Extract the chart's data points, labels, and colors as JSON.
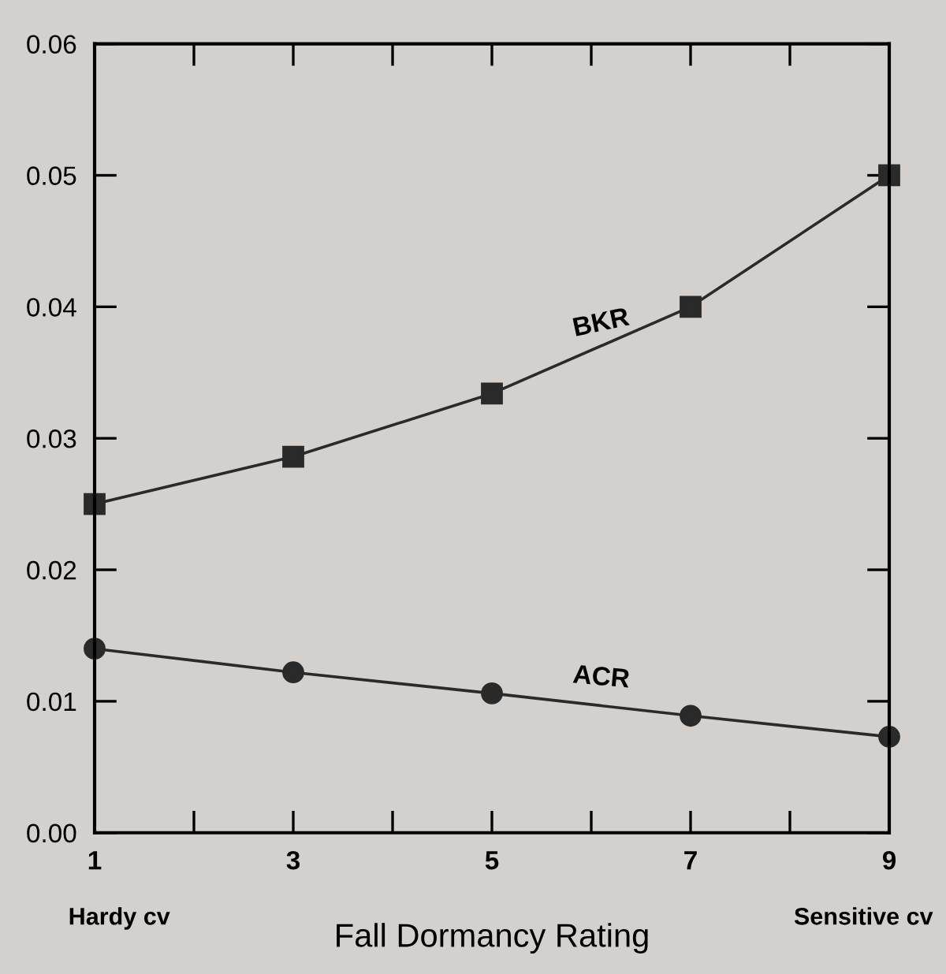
{
  "chart_data": {
    "type": "line",
    "xlabel": "Fall Dormancy Rating",
    "x": [
      1,
      3,
      5,
      7,
      9
    ],
    "series": [
      {
        "name": "BKR",
        "color": "#2a2a2a",
        "marker": "square",
        "values": [
          0.025,
          0.0286,
          0.0334,
          0.04,
          0.05
        ]
      },
      {
        "name": "ACR",
        "color": "#2a2a2a",
        "marker": "circle",
        "values": [
          0.014,
          0.0122,
          0.0106,
          0.0089,
          0.0073
        ]
      }
    ],
    "xlim": [
      1,
      9
    ],
    "xticks": [
      1,
      {
        "value": 2,
        "label": null
      },
      3,
      {
        "value": 4,
        "label": null
      },
      5,
      {
        "value": 6,
        "label": null
      },
      7,
      {
        "value": 8,
        "label": null
      },
      9
    ],
    "ylim": [
      0,
      0.06
    ],
    "yticks": [
      {
        "value": 0,
        "label": "0.00"
      },
      0.01,
      0.02,
      0.03,
      0.04,
      0.05,
      0.06
    ],
    "annotations": [
      "Hardy cv",
      "Sensitive cv"
    ],
    "grid": false,
    "legend": false,
    "line_style": "solid"
  }
}
